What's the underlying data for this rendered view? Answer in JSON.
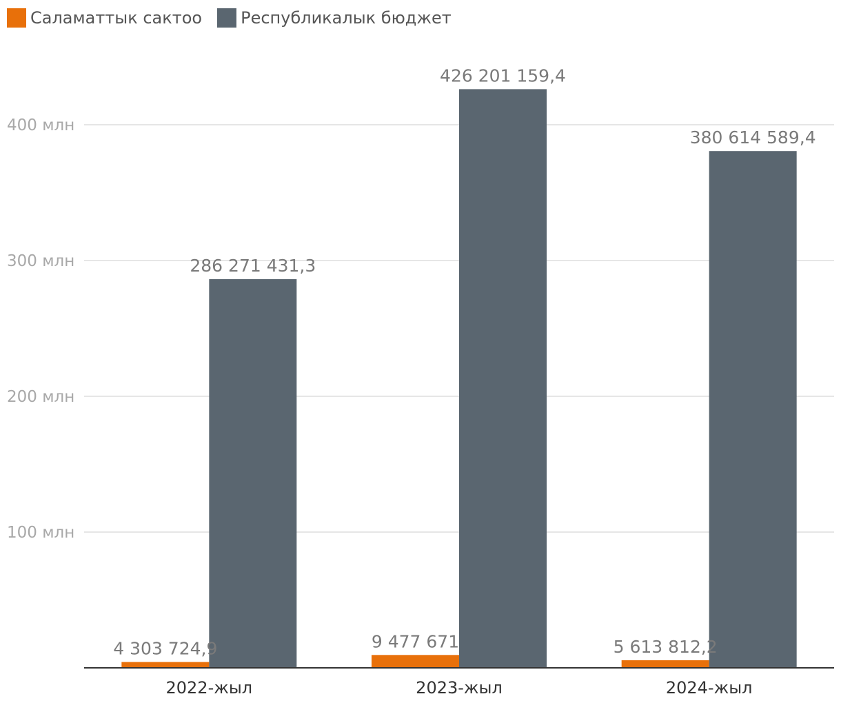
{
  "chart_data": {
    "type": "bar",
    "categories": [
      "2022-жыл",
      "2023-жыл",
      "2024-жыл"
    ],
    "series": [
      {
        "name": "Саламаттык сактоо",
        "color": "#e8700a",
        "values": [
          4303724.9,
          9477671,
          5613812.2
        ],
        "labels": [
          "4 303 724,9",
          "9 477 671",
          "5 613 812,2"
        ]
      },
      {
        "name": "Республикалык бюджет",
        "color": "#5a6670",
        "values": [
          286271431.3,
          426201159.4,
          380614589.4
        ],
        "labels": [
          "286 271 431,3",
          "426 201 159,4",
          "380 614 589,4"
        ]
      }
    ],
    "yticks": [
      100000000,
      200000000,
      300000000,
      400000000
    ],
    "ytick_labels": [
      "100 млн",
      "200 млн",
      "300 млн",
      "400 млн"
    ],
    "ylim": [
      0,
      440000000
    ],
    "grid": true,
    "legend": "top-left",
    "title": "",
    "xlabel": "",
    "ylabel": ""
  }
}
